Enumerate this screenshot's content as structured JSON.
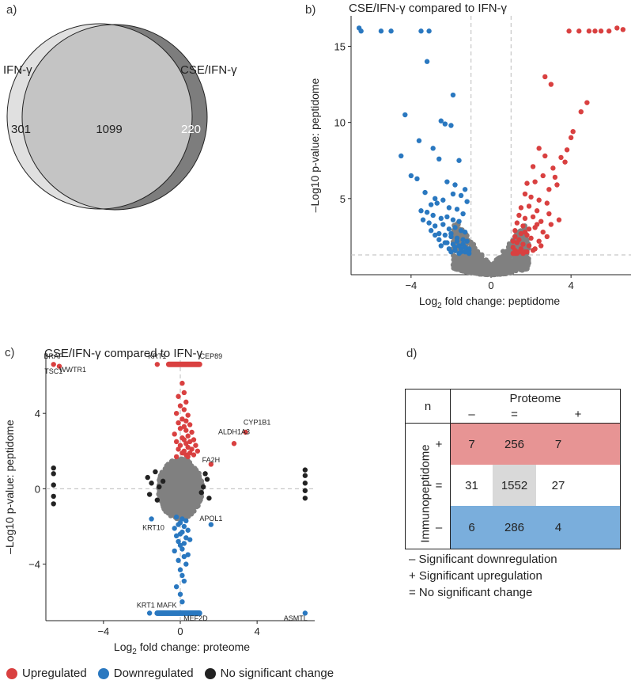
{
  "panels": {
    "a": {
      "label": "a)",
      "left_set": "IFN-γ",
      "right_set": "CSE/IFN-γ",
      "left_only": "301",
      "overlap": "1099",
      "right_only": "220",
      "colors": {
        "left": "#e0e0e0",
        "overlap": "#c4c4c4",
        "right": "#7d7d7d",
        "stroke": "#222222"
      }
    },
    "b": {
      "label": "b)",
      "title": "CSE/IFN-γ compared to IFN-γ",
      "xlabel_pre": "Log",
      "xlabel_sub": "2",
      "xlabel_post": " fold change: peptidome",
      "ylabel": "–Log10 p-value: peptidome"
    },
    "c": {
      "label": "c)",
      "title": "CSE/IFN-γ compared to IFN-γ",
      "xlabel_pre": "Log",
      "xlabel_sub": "2",
      "xlabel_post": " fold change: proteome",
      "ylabel": "–Log10 p-value: peptidome"
    },
    "d": {
      "label": "d)",
      "n_label": "n",
      "col_header": "Proteome",
      "col_signs": [
        "–",
        "=",
        "+"
      ],
      "row_header": "Immunopeptidome",
      "row_signs": [
        "+",
        "=",
        "–"
      ],
      "cells": [
        [
          "7",
          "256",
          "7"
        ],
        [
          "31",
          "1552",
          "27"
        ],
        [
          "6",
          "286",
          "4"
        ]
      ],
      "footnotes": [
        "– Significant downregulation",
        "+ Significant upregulation",
        "= No significant change"
      ],
      "colors": {
        "up": "#e79494",
        "mid": "#d9d9d9",
        "down": "#7aaedc"
      }
    }
  },
  "legend": {
    "items": [
      {
        "label": "Upregulated",
        "color": "#d94040"
      },
      {
        "label": "Downregulated",
        "color": "#2a78c0"
      },
      {
        "label": "No significant change",
        "color": "#222222"
      }
    ]
  },
  "chart_data": [
    {
      "type": "scatter",
      "panel": "b",
      "title": "CSE/IFN-γ compared to IFN-γ",
      "xlabel": "Log2 fold change: peptidome",
      "ylabel": "–Log10 p-value: peptidome",
      "xlim": [
        -7,
        7
      ],
      "ylim": [
        0,
        17
      ],
      "xticks": [
        -4,
        0,
        4
      ],
      "yticks": [
        5,
        10,
        15
      ],
      "ref_lines": {
        "x": [
          -1,
          1
        ],
        "y": [
          1.3
        ]
      },
      "series": [
        {
          "name": "Upregulated",
          "color": "#d94040",
          "x": [
            6.3,
            6.6,
            5.9,
            5.5,
            5.2,
            4.9,
            4.4,
            3.9,
            2.7,
            3.0,
            4.8,
            4.5,
            4.1,
            4.0,
            3.8,
            3.5,
            3.7,
            2.4,
            2.7,
            3.1,
            2.1,
            2.6,
            3.2,
            3.3,
            1.8,
            2.2,
            2.9,
            1.7,
            2.0,
            2.4,
            1.5,
            1.9,
            2.3,
            2.8,
            1.4,
            1.7,
            2.1,
            2.5,
            1.3,
            1.6,
            1.9,
            2.2,
            1.2,
            1.5,
            1.8,
            1.2,
            1.4,
            1.1,
            1.3,
            1.6,
            2.0,
            2.6,
            3.0,
            3.4,
            2.9,
            2.3,
            1.7,
            1.1,
            1.2,
            1.5,
            1.9,
            2.4,
            2.8,
            1.3,
            1.6,
            2.1,
            2.5,
            1.2,
            1.4,
            1.8,
            2.2,
            1.1,
            1.3,
            1.7
          ],
          "y": [
            16.2,
            16.1,
            16.0,
            16.0,
            16.0,
            16.0,
            16.0,
            16.0,
            13.0,
            12.5,
            11.3,
            10.7,
            9.4,
            9.0,
            8.2,
            7.7,
            7.4,
            8.3,
            7.8,
            7.0,
            7.1,
            6.5,
            6.4,
            5.9,
            6.0,
            6.1,
            5.6,
            5.3,
            5.1,
            4.9,
            4.4,
            4.5,
            4.2,
            4.7,
            3.9,
            3.7,
            3.8,
            3.5,
            3.4,
            3.2,
            3.0,
            3.1,
            2.9,
            2.7,
            2.6,
            2.5,
            2.3,
            2.2,
            2.1,
            2.0,
            2.4,
            2.8,
            3.3,
            3.6,
            4.0,
            3.3,
            2.8,
            1.8,
            1.6,
            1.7,
            1.9,
            2.2,
            2.5,
            1.5,
            1.4,
            1.6,
            1.9,
            1.4,
            1.5,
            1.5,
            1.7,
            1.4,
            1.4,
            1.5
          ]
        },
        {
          "name": "Downregulated",
          "color": "#2a78c0",
          "x": [
            -6.6,
            -6.5,
            -5.5,
            -5.0,
            -3.5,
            -3.1,
            -3.2,
            -4.3,
            -1.9,
            -2.5,
            -2.3,
            -3.6,
            -4.5,
            -2.9,
            -2.6,
            -2.0,
            -1.6,
            -4.0,
            -3.7,
            -2.2,
            -1.8,
            -1.3,
            -3.3,
            -2.8,
            -1.5,
            -1.9,
            -2.4,
            -1.2,
            -3.0,
            -2.7,
            -3.5,
            -3.2,
            -2.1,
            -1.7,
            -1.4,
            -2.9,
            -2.5,
            -2.2,
            -1.9,
            -1.6,
            -3.1,
            -2.8,
            -2.4,
            -2.1,
            -1.8,
            -1.5,
            -1.3,
            -2.6,
            -2.3,
            -2.0,
            -1.7,
            -1.4,
            -1.2,
            -2.2,
            -1.9,
            -1.6,
            -1.3,
            -1.1,
            -2.5,
            -2.1,
            -1.8,
            -1.5,
            -1.2,
            -3.4,
            -3.0,
            -2.6,
            -2.0,
            -1.7,
            -1.4,
            -1.1,
            -1.2,
            -1.5,
            -1.8,
            -2.3,
            -2.8,
            -1.1,
            -1.3,
            -1.6,
            -2.0
          ],
          "y": [
            16.2,
            16.0,
            16.0,
            16.0,
            16.0,
            16.0,
            14.0,
            10.5,
            11.8,
            10.1,
            9.9,
            8.8,
            7.8,
            8.3,
            7.6,
            9.8,
            7.5,
            6.5,
            6.3,
            6.1,
            5.9,
            5.6,
            5.4,
            5.0,
            5.2,
            5.3,
            4.9,
            4.8,
            4.6,
            4.7,
            4.2,
            4.1,
            4.4,
            4.3,
            4.0,
            3.9,
            3.7,
            3.8,
            3.6,
            3.5,
            3.4,
            3.2,
            3.3,
            3.0,
            3.1,
            2.9,
            2.8,
            2.7,
            2.6,
            2.5,
            2.4,
            2.3,
            2.2,
            2.1,
            2.0,
            1.9,
            1.8,
            1.7,
            1.9,
            1.7,
            1.6,
            1.5,
            1.6,
            3.6,
            2.9,
            2.3,
            2.7,
            2.2,
            2.0,
            1.6,
            1.5,
            1.7,
            1.8,
            2.1,
            2.6,
            1.4,
            1.5,
            1.4,
            1.5
          ]
        },
        {
          "name": "Not significant",
          "color": "#808080",
          "model": "y ≈ 0.12·x², spread around the V-shaped envelope, |x| ≤ 1.8, y ≤ 3.4",
          "approx_count": 1400
        }
      ]
    },
    {
      "type": "scatter",
      "panel": "c",
      "title": "CSE/IFN-γ compared to IFN-γ",
      "xlabel": "Log2 fold change: proteome",
      "ylabel": "–Log10 p-value: peptidome",
      "xlim": [
        -7,
        7
      ],
      "ylim": [
        -7,
        7.2
      ],
      "xticks": [
        -4,
        0,
        4
      ],
      "yticks": [
        -4,
        0,
        4
      ],
      "ref_lines": {
        "x": [
          0
        ],
        "y": [
          0
        ]
      },
      "annotations": [
        {
          "text": "BRAP",
          "x": -6.6,
          "y": 6.9
        },
        {
          "text": "TSC1",
          "x": -6.6,
          "y": 6.1
        },
        {
          "text": "WWTR1",
          "x": -5.6,
          "y": 6.2
        },
        {
          "text": "KRT1",
          "x": -1.2,
          "y": 6.9
        },
        {
          "text": "CEP89",
          "x": 1.6,
          "y": 6.9
        },
        {
          "text": "CYP1B1",
          "x": 4.0,
          "y": 3.4
        },
        {
          "text": "ALDH1A3",
          "x": 2.8,
          "y": 2.9
        },
        {
          "text": "FA2H",
          "x": 1.6,
          "y": 1.4
        },
        {
          "text": "APOL1",
          "x": 1.6,
          "y": -1.7
        },
        {
          "text": "KRT10",
          "x": -1.4,
          "y": -2.2
        },
        {
          "text": "KRT1",
          "x": -1.8,
          "y": -6.3
        },
        {
          "text": "MAFK",
          "x": -0.7,
          "y": -6.3
        },
        {
          "text": "MEF2D",
          "x": 0.8,
          "y": -7.0
        },
        {
          "text": "ASMTL",
          "x": 6.0,
          "y": -7.0
        }
      ],
      "series": [
        {
          "name": "Upregulated",
          "color": "#d94040",
          "x": [
            -6.6,
            -6.3,
            -1.2,
            0.9,
            3.4,
            2.8,
            1.6,
            0.1,
            0.2,
            -0.1,
            0.3,
            0.0,
            0.2,
            -0.2,
            0.4,
            0.1,
            0.3,
            -0.1,
            0.5,
            0.2,
            0.0,
            0.3,
            0.6,
            -0.3,
            0.4,
            0.1,
            0.7,
            0.2,
            -0.2,
            0.5,
            0.3,
            0.0,
            0.8,
            0.4,
            -0.1,
            0.6,
            0.2,
            0.9,
            0.1,
            0.5,
            0.3,
            0.7,
            -0.2,
            0.4
          ],
          "y": [
            6.6,
            6.5,
            6.6,
            6.6,
            3.0,
            2.4,
            1.3,
            5.6,
            5.1,
            4.9,
            4.6,
            4.4,
            4.2,
            4.0,
            3.9,
            3.7,
            3.6,
            3.5,
            3.4,
            3.3,
            3.2,
            3.1,
            3.0,
            2.9,
            2.8,
            2.7,
            2.6,
            2.6,
            2.5,
            2.5,
            2.4,
            2.3,
            2.3,
            2.2,
            2.1,
            2.1,
            2.0,
            2.0,
            1.9,
            1.9,
            1.8,
            1.8,
            1.7,
            1.7
          ],
          "bar_at_top": {
            "x_from": -0.6,
            "x_to": 1.0,
            "y": 6.6
          }
        },
        {
          "name": "Downregulated",
          "color": "#2a78c0",
          "x": [
            -1.6,
            -0.4,
            6.5,
            1.6,
            -1.5,
            -0.2,
            0.1,
            0.0,
            0.3,
            -0.1,
            0.2,
            -0.3,
            0.4,
            0.1,
            0.0,
            -0.2,
            0.3,
            0.5,
            -0.1,
            0.2,
            0.0,
            0.1,
            -0.3,
            0.4,
            0.2,
            -0.1,
            0.3,
            0.0,
            0.1,
            0.2,
            -0.2,
            0.0,
            0.1
          ],
          "y": [
            -6.6,
            -6.6,
            -6.6,
            -1.9,
            -1.6,
            -1.5,
            -1.6,
            -1.8,
            -1.7,
            -1.9,
            -2.0,
            -2.1,
            -2.2,
            -2.3,
            -2.4,
            -2.5,
            -2.6,
            -2.7,
            -2.8,
            -2.9,
            -3.0,
            -3.2,
            -3.3,
            -3.5,
            -3.6,
            -3.8,
            -4.0,
            -4.3,
            -4.6,
            -4.9,
            -5.2,
            -5.6,
            -6.0
          ],
          "bar_at_bottom": {
            "x_from": -1.2,
            "x_to": 1.0,
            "y": -6.6
          }
        },
        {
          "name": "No significant change",
          "color": "#222222",
          "x": [
            -6.6,
            -6.6,
            -6.6,
            -6.6,
            -6.6,
            6.5,
            6.5,
            6.5,
            6.5,
            6.5,
            -1.7,
            -1.5,
            -1.3,
            -1.1,
            -1.6,
            -1.2,
            -0.9,
            1.4,
            1.2,
            1.5,
            1.1,
            1.3
          ],
          "y": [
            1.1,
            0.8,
            0.2,
            -0.4,
            -0.8,
            1.0,
            0.7,
            0.3,
            -0.1,
            -0.5,
            0.6,
            0.3,
            0.9,
            0.1,
            -0.3,
            -0.6,
            0.4,
            0.5,
            0.1,
            -0.5,
            -0.2,
            0.8
          ]
        },
        {
          "name": "Not significant",
          "color": "#808080",
          "model": "dense cloud centred at (0, 0), |x| ≤ 1.2, |y| ≤ 1.6",
          "approx_count": 1600
        }
      ]
    }
  ]
}
